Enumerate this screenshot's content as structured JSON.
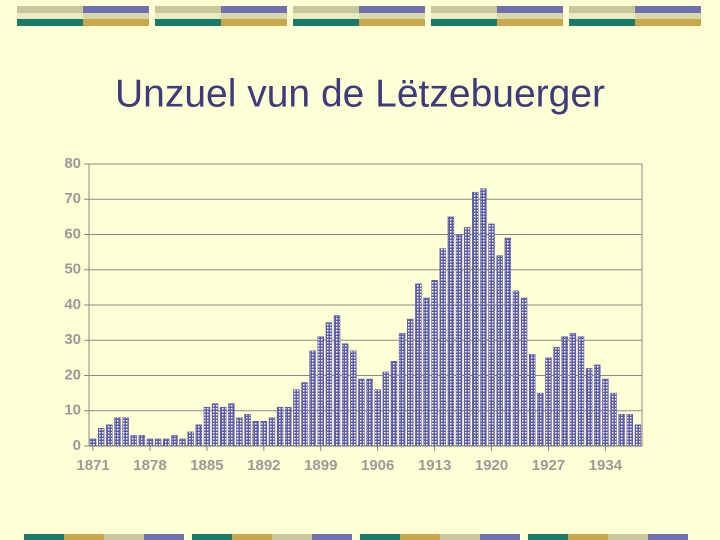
{
  "chart_data": {
    "type": "bar",
    "title": "Unzuel vun de Lëtzebuerger",
    "categories": [
      "1871",
      null,
      null,
      null,
      null,
      null,
      null,
      "1878",
      null,
      null,
      null,
      null,
      null,
      null,
      "1885",
      null,
      null,
      null,
      null,
      null,
      null,
      "1892",
      null,
      null,
      null,
      null,
      null,
      null,
      "1899",
      null,
      null,
      null,
      null,
      null,
      null,
      "1906",
      null,
      null,
      null,
      null,
      null,
      null,
      "1913",
      null,
      null,
      null,
      null,
      null,
      null,
      "1920",
      null,
      null,
      null,
      null,
      null,
      null,
      "1927",
      null,
      null,
      null,
      null,
      null,
      null,
      "1934",
      null,
      null,
      null,
      null
    ],
    "values": [
      2,
      5,
      6,
      8,
      8,
      3,
      3,
      2,
      2,
      2,
      3,
      2,
      4,
      6,
      11,
      12,
      11,
      12,
      8,
      9,
      7,
      7,
      8,
      11,
      11,
      16,
      18,
      27,
      31,
      35,
      37,
      29,
      27,
      19,
      19,
      16,
      21,
      24,
      32,
      36,
      46,
      42,
      47,
      56,
      65,
      60,
      62,
      72,
      73,
      63,
      54,
      59,
      44,
      42,
      26,
      15,
      25,
      28,
      31,
      32,
      31,
      22,
      23,
      19,
      15,
      9,
      9,
      6
    ],
    "color": "#5c5ca8",
    "ylim": [
      0,
      80
    ],
    "yticks": [
      0,
      10,
      20,
      30,
      40,
      50,
      60,
      70,
      80
    ],
    "grid": true
  }
}
